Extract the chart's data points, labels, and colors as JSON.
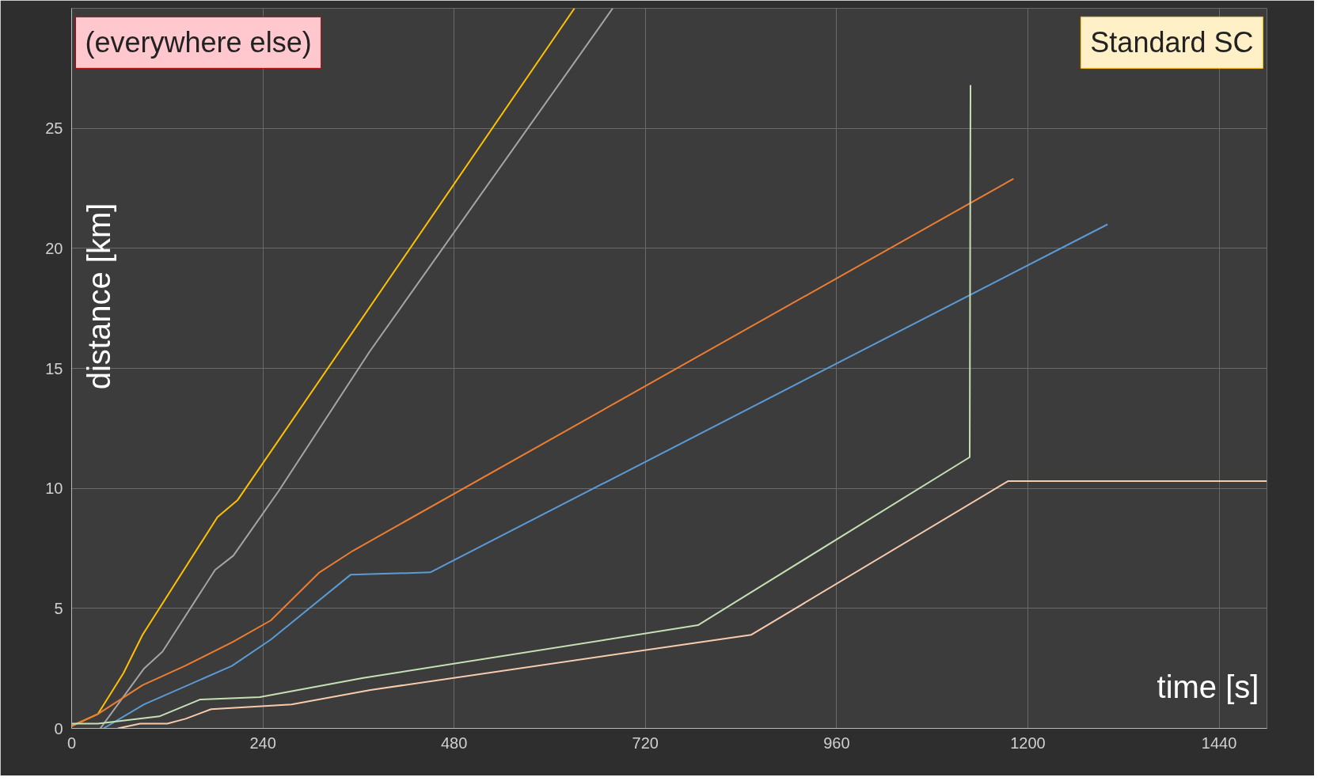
{
  "chart_data": {
    "type": "line",
    "xlabel": "time [s]",
    "ylabel": "distance [km]",
    "xlim": [
      0,
      1500
    ],
    "ylim": [
      0,
      30
    ],
    "xticks": [
      0,
      240,
      480,
      720,
      960,
      1200,
      1440
    ],
    "yticks": [
      0,
      5,
      10,
      15,
      20,
      25
    ],
    "grid": true,
    "marker": "none",
    "line_style": "solid",
    "annotations": [
      "(everywhere else)",
      "Standard SC"
    ],
    "series": [
      {
        "color": "#ffc000",
        "x": [
          0,
          33,
          65,
          89,
          183,
          208,
          631
        ],
        "values": [
          0.1,
          0.6,
          2.3,
          3.9,
          8.8,
          9.5,
          30
        ]
      },
      {
        "color": "#a5a5a5",
        "x": [
          36,
          91,
          114,
          180,
          203,
          260,
          374,
          679
        ],
        "values": [
          0,
          2.5,
          3.2,
          6.6,
          7.2,
          9.9,
          15.7,
          30
        ]
      },
      {
        "color": "#ed7d31",
        "x": [
          0,
          33,
          89,
          142,
          202,
          250,
          311,
          353,
          1182
        ],
        "values": [
          0.1,
          0.6,
          1.8,
          2.6,
          3.6,
          4.5,
          6.5,
          7.4,
          22.9
        ]
      },
      {
        "color": "#5b9bd5",
        "x": [
          40,
          91,
          201,
          250,
          350,
          450,
          1300
        ],
        "values": [
          0,
          1.0,
          2.6,
          3.7,
          6.4,
          6.5,
          21.0
        ]
      },
      {
        "color": "#c5e0b4",
        "x": [
          0,
          33,
          110,
          161,
          236,
          366,
          786,
          1127,
          1128
        ],
        "values": [
          0.2,
          0.2,
          0.5,
          1.2,
          1.3,
          2.1,
          4.3,
          11.3,
          26.8
        ]
      },
      {
        "color": "#f8cbad",
        "x": [
          58,
          86,
          120,
          143,
          175,
          276,
          375,
          853,
          1175,
          1500
        ],
        "values": [
          0,
          0.2,
          0.2,
          0.4,
          0.8,
          1.0,
          1.6,
          3.9,
          10.3,
          10.3
        ]
      }
    ]
  }
}
